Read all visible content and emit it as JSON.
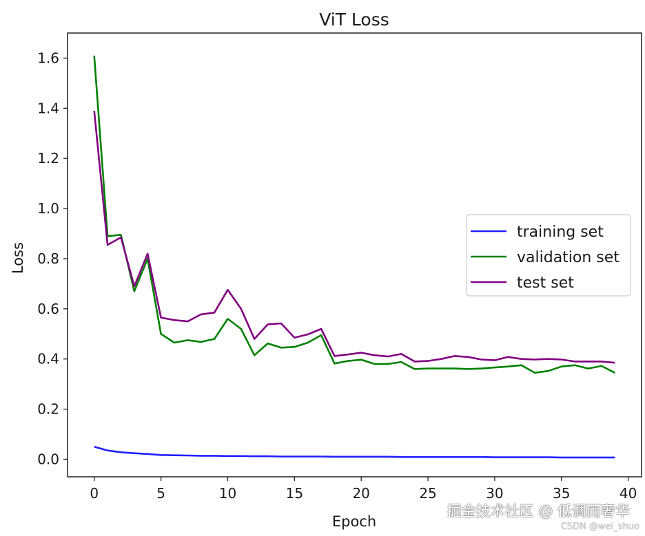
{
  "chart_data": {
    "type": "line",
    "title": "ViT Loss",
    "xlabel": "Epoch",
    "ylabel": "Loss",
    "xlim": [
      -2,
      41
    ],
    "ylim": [
      -0.07,
      1.7
    ],
    "xticks": [
      0,
      5,
      10,
      15,
      20,
      25,
      30,
      35,
      40
    ],
    "yticks": [
      0.0,
      0.2,
      0.4,
      0.6,
      0.8,
      1.0,
      1.2,
      1.4,
      1.6
    ],
    "xtick_labels": [
      "0",
      "5",
      "10",
      "15",
      "20",
      "25",
      "30",
      "35",
      "40"
    ],
    "ytick_labels": [
      "0.0",
      "0.2",
      "0.4",
      "0.6",
      "0.8",
      "1.0",
      "1.2",
      "1.4",
      "1.6"
    ],
    "grid": false,
    "legend_position": "center-right",
    "x": [
      0,
      1,
      2,
      3,
      4,
      5,
      6,
      7,
      8,
      9,
      10,
      11,
      12,
      13,
      14,
      15,
      16,
      17,
      18,
      19,
      20,
      21,
      22,
      23,
      24,
      25,
      26,
      27,
      28,
      29,
      30,
      31,
      32,
      33,
      34,
      35,
      36,
      37,
      38,
      39
    ],
    "series": [
      {
        "name": "training set",
        "color": "#1f1fff",
        "values": [
          0.05,
          0.035,
          0.028,
          0.024,
          0.021,
          0.017,
          0.016,
          0.015,
          0.014,
          0.014,
          0.013,
          0.013,
          0.012,
          0.012,
          0.011,
          0.011,
          0.011,
          0.011,
          0.01,
          0.01,
          0.01,
          0.01,
          0.01,
          0.009,
          0.009,
          0.009,
          0.009,
          0.009,
          0.009,
          0.009,
          0.008,
          0.008,
          0.008,
          0.008,
          0.008,
          0.007,
          0.007,
          0.007,
          0.007,
          0.007
        ]
      },
      {
        "name": "validation set",
        "color": "#008000",
        "values": [
          1.61,
          0.89,
          0.895,
          0.67,
          0.8,
          0.5,
          0.465,
          0.475,
          0.468,
          0.48,
          0.56,
          0.52,
          0.415,
          0.462,
          0.445,
          0.448,
          0.465,
          0.495,
          0.382,
          0.392,
          0.397,
          0.38,
          0.38,
          0.388,
          0.36,
          0.362,
          0.362,
          0.362,
          0.36,
          0.362,
          0.366,
          0.37,
          0.375,
          0.345,
          0.352,
          0.37,
          0.375,
          0.362,
          0.372,
          0.345
        ]
      },
      {
        "name": "test set",
        "color": "#800080",
        "values": [
          1.39,
          0.855,
          0.885,
          0.69,
          0.82,
          0.565,
          0.555,
          0.55,
          0.578,
          0.585,
          0.676,
          0.6,
          0.48,
          0.538,
          0.542,
          0.485,
          0.498,
          0.52,
          0.412,
          0.418,
          0.425,
          0.415,
          0.41,
          0.42,
          0.39,
          0.392,
          0.4,
          0.412,
          0.408,
          0.398,
          0.395,
          0.408,
          0.4,
          0.398,
          0.4,
          0.398,
          0.39,
          0.39,
          0.39,
          0.385
        ]
      }
    ]
  },
  "watermark": {
    "primary": "掘金技术社区 @ 低调而奢华",
    "secondary": "CSDN @wei_shuo"
  }
}
